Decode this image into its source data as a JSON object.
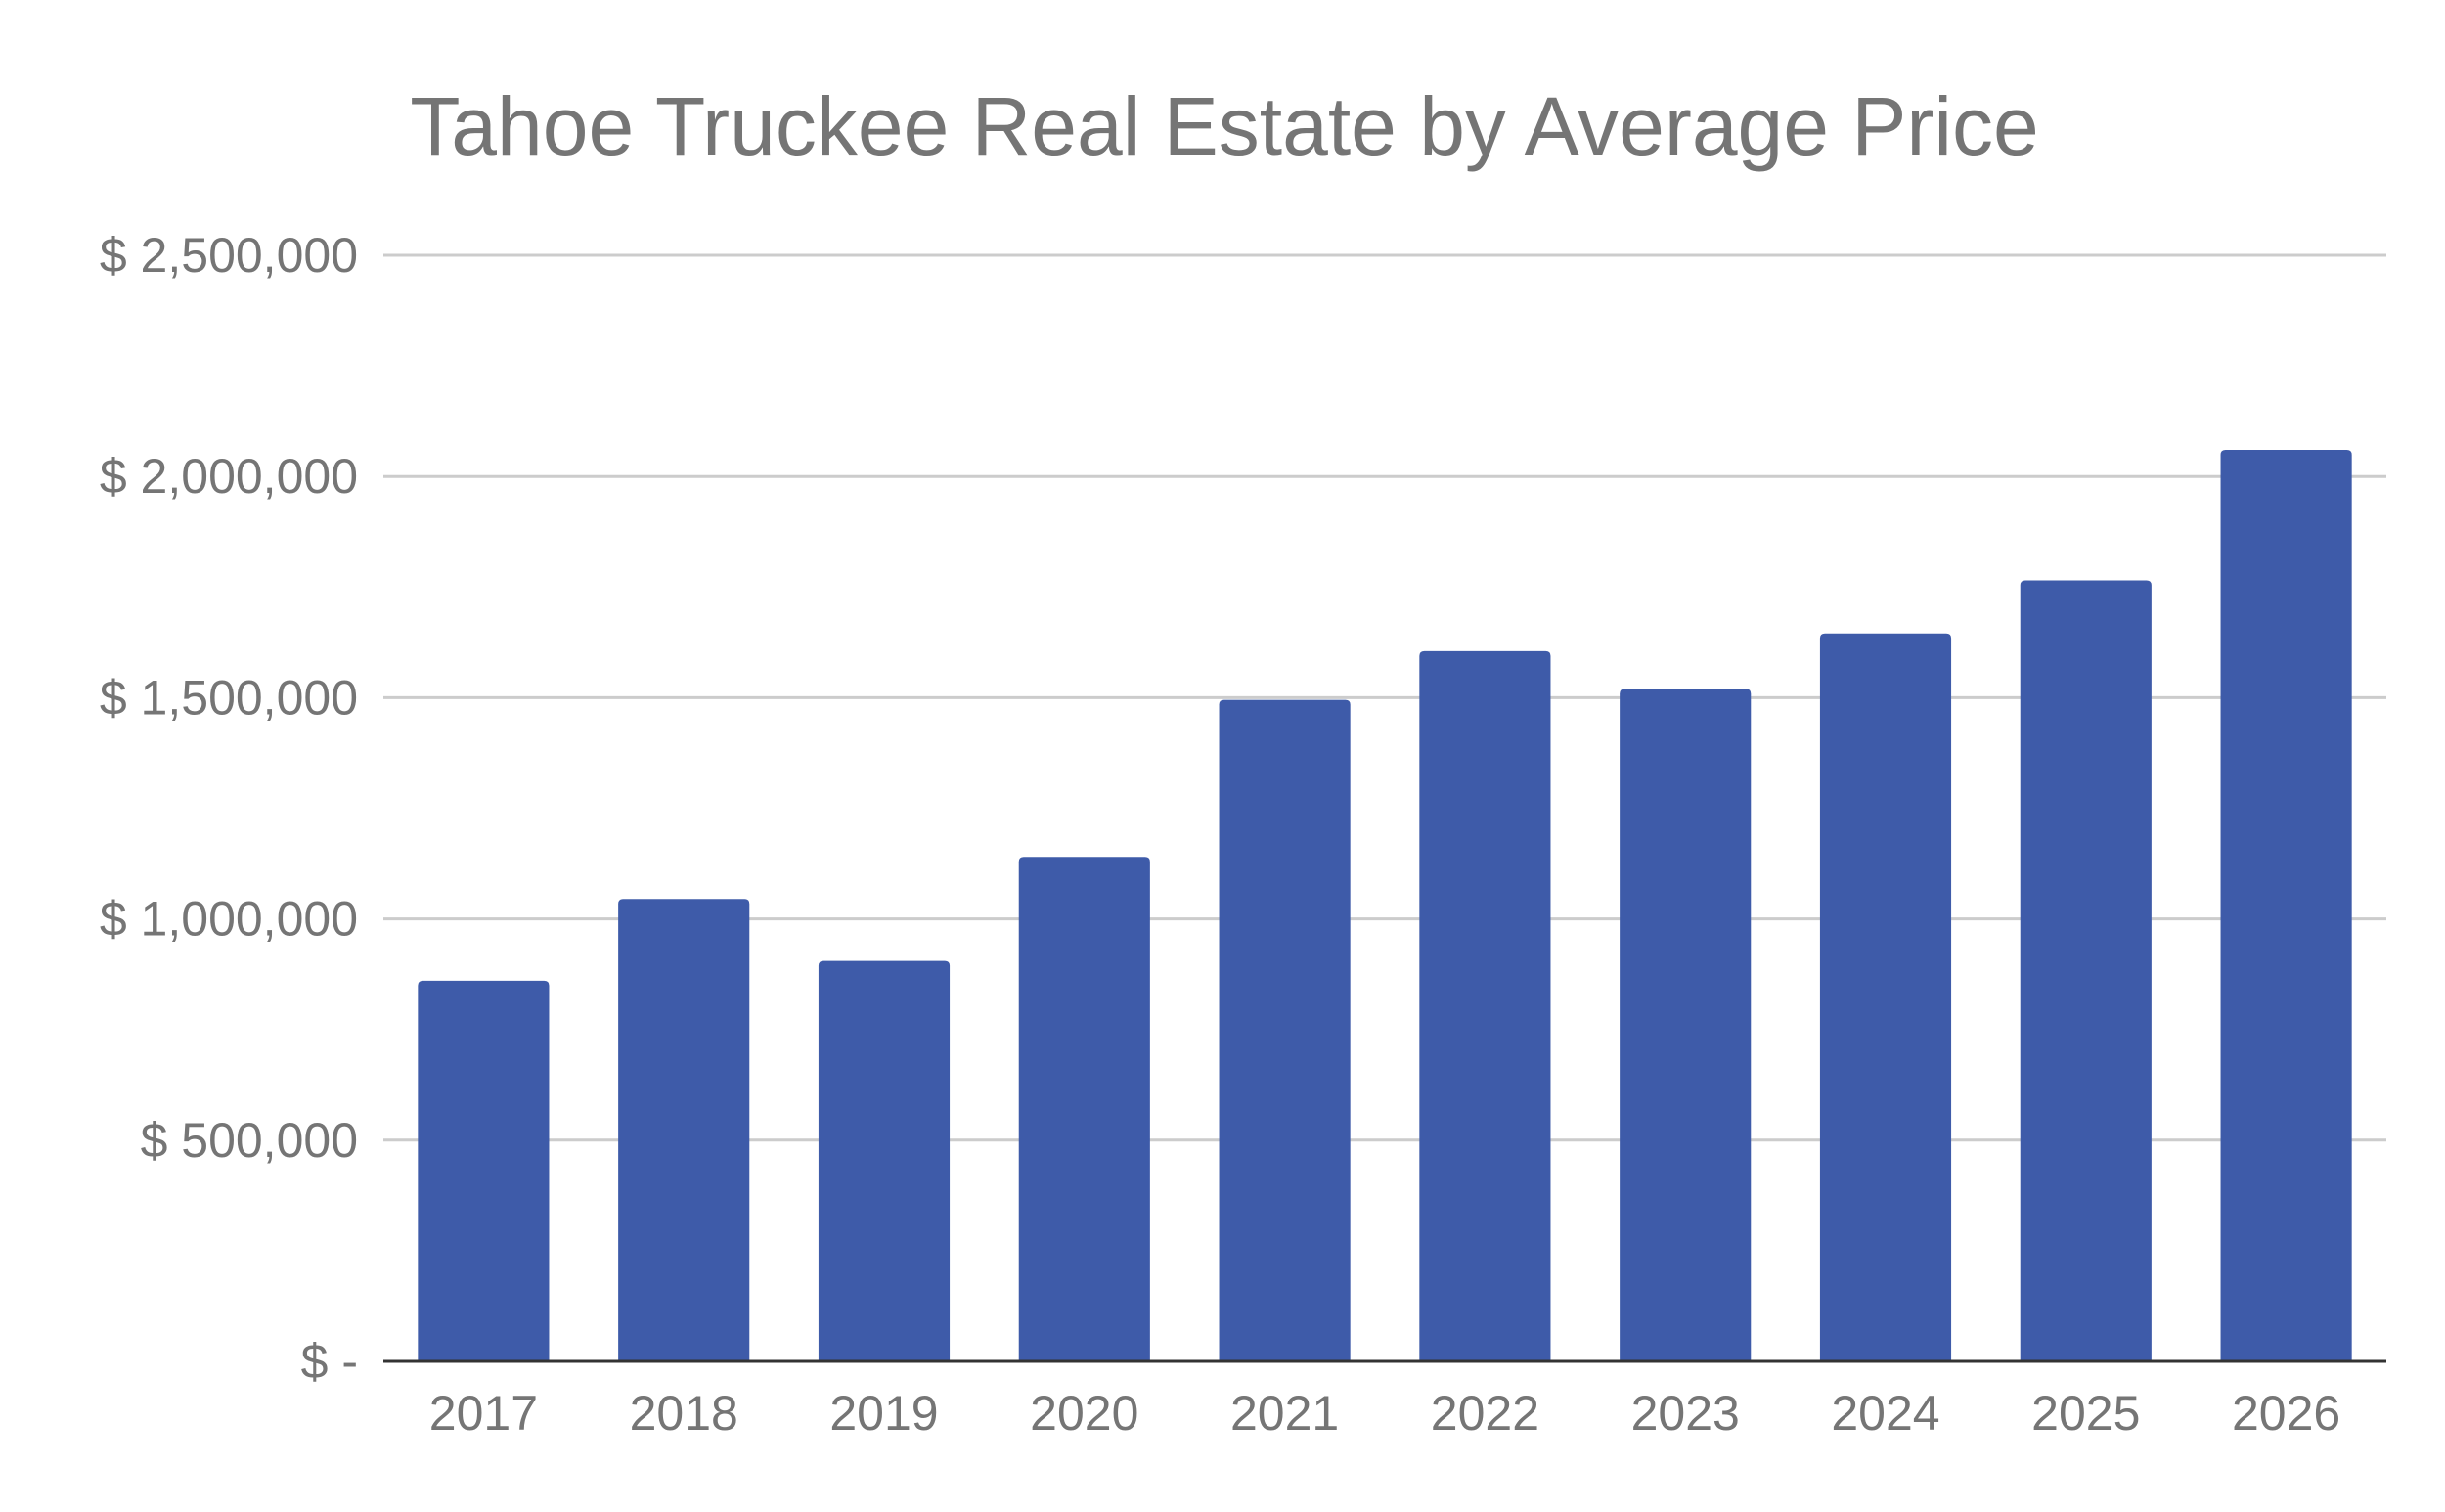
{
  "chart_data": {
    "type": "bar",
    "title": "Tahoe Truckee Real Estate by Average Price",
    "categories": [
      "2017",
      "2018",
      "2019",
      "2020",
      "2021",
      "2022",
      "2023",
      "2024",
      "2025",
      "2026"
    ],
    "values": [
      860000,
      1045000,
      905000,
      1140000,
      1495000,
      1605000,
      1520000,
      1645000,
      1765000,
      2060000
    ],
    "ylim": [
      0,
      2500000
    ],
    "y_ticks": [
      {
        "value": 0,
        "label": "$ -"
      },
      {
        "value": 500000,
        "label": "$ 500,000"
      },
      {
        "value": 1000000,
        "label": "$ 1,000,000"
      },
      {
        "value": 1500000,
        "label": "$ 1,500,000"
      },
      {
        "value": 2000000,
        "label": "$ 2,000,000"
      },
      {
        "value": 2500000,
        "label": "$ 2,500,000"
      }
    ],
    "xlabel": "",
    "ylabel": "",
    "grid": true,
    "bar_color": "#3e5ba9",
    "grid_color": "#cccccc",
    "axis_color": "#333333",
    "text_color": "#757575"
  }
}
